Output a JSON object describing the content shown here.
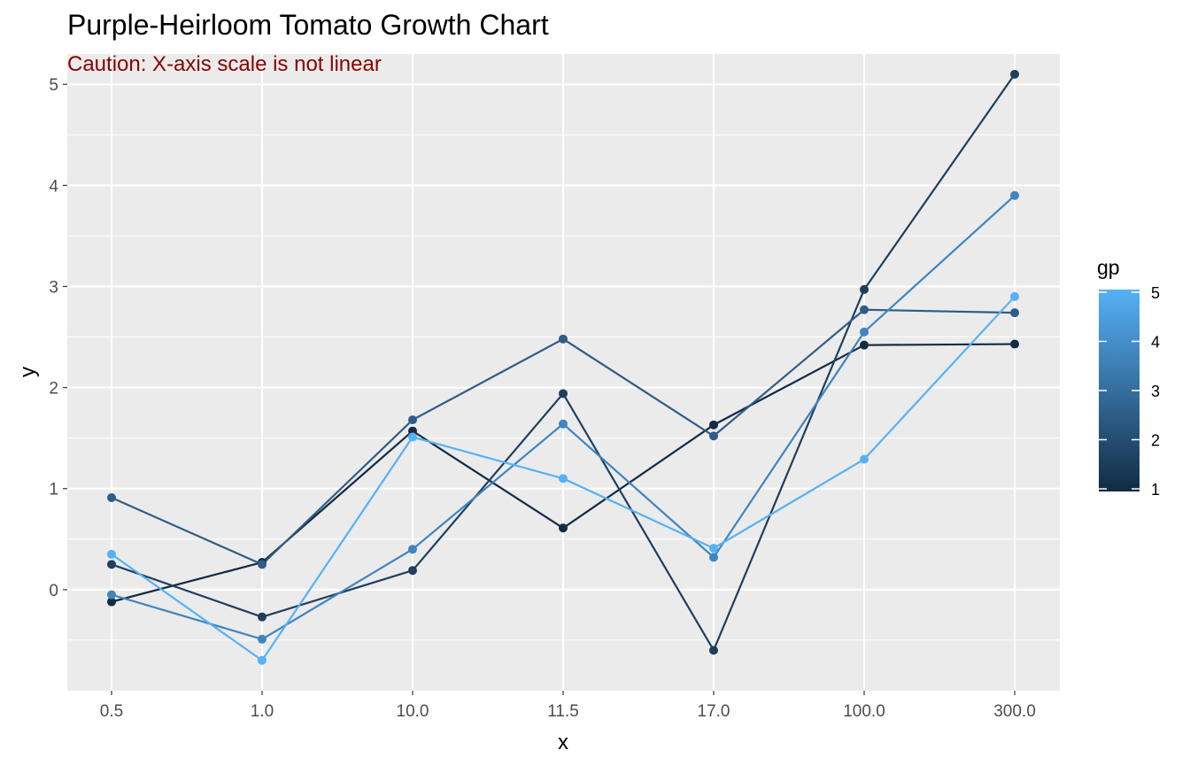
{
  "chart_data": {
    "type": "line",
    "title": "Purple-Heirloom Tomato Growth Chart",
    "subtitle": "Caution: X-axis scale is not linear",
    "xlabel": "x",
    "ylabel": "y",
    "x_scale": "categorical (non-linear spacing)",
    "categories": [
      "0.5",
      "1.0",
      "10.0",
      "11.5",
      "17.0",
      "100.0",
      "300.0"
    ],
    "ylim": [
      -1.0,
      5.3
    ],
    "y_ticks": [
      0,
      1,
      2,
      3,
      4,
      5
    ],
    "grid": true,
    "legend": {
      "title": "gp",
      "type": "colorbar",
      "placement": "right",
      "min": 1,
      "max": 5,
      "ticks": [
        1,
        2,
        3,
        4,
        5
      ],
      "low_color": "#132B43",
      "high_color": "#56B1F7"
    },
    "series": [
      {
        "gp": 1,
        "color": "#132B43",
        "values": [
          -0.12,
          0.27,
          1.57,
          0.61,
          1.63,
          2.42,
          2.43
        ]
      },
      {
        "gp": 2,
        "color": "#1F3F5E",
        "values": [
          0.25,
          -0.27,
          0.19,
          1.94,
          -0.6,
          2.97,
          5.1
        ]
      },
      {
        "gp": 3,
        "color": "#2E5D87",
        "values": [
          0.91,
          0.25,
          1.68,
          2.48,
          1.52,
          2.77,
          2.74
        ]
      },
      {
        "gp": 4,
        "color": "#3F85C0",
        "values": [
          -0.05,
          -0.49,
          0.4,
          1.64,
          0.32,
          2.55,
          3.9
        ]
      },
      {
        "gp": 5,
        "color": "#56B1F7",
        "values": [
          0.35,
          -0.7,
          1.51,
          1.1,
          0.41,
          1.29,
          2.9
        ]
      }
    ],
    "colors": {
      "panel_background": "#EBEBEB",
      "grid": "#FFFFFF",
      "tick_label": "#4D4D4D",
      "subtitle": "#8B0000"
    }
  }
}
